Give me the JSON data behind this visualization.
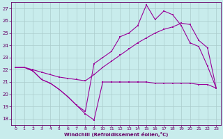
{
  "xlabel": "Windchill (Refroidissement éolien,°C)",
  "bg_color": "#c8ecec",
  "grid_color": "#aacccc",
  "line_color": "#990099",
  "xlim": [
    -0.5,
    23.5
  ],
  "ylim": [
    17.5,
    27.5
  ],
  "xticks": [
    0,
    1,
    2,
    3,
    4,
    5,
    6,
    7,
    8,
    9,
    10,
    11,
    12,
    13,
    14,
    15,
    16,
    17,
    18,
    19,
    20,
    21,
    22,
    23
  ],
  "yticks": [
    18,
    19,
    20,
    21,
    22,
    23,
    24,
    25,
    26,
    27
  ],
  "line1_x": [
    0,
    1,
    2,
    3,
    4,
    5,
    6,
    7,
    8,
    9,
    10,
    11,
    12,
    13,
    14,
    15,
    16,
    17,
    18,
    19,
    20,
    21,
    22,
    23
  ],
  "line1_y": [
    22.2,
    22.2,
    21.9,
    21.2,
    20.9,
    20.4,
    19.8,
    19.1,
    18.4,
    17.9,
    21.0,
    21.0,
    21.0,
    21.0,
    21.0,
    21.0,
    20.9,
    20.9,
    20.9,
    20.9,
    20.9,
    20.8,
    20.8,
    20.5
  ],
  "line2_x": [
    0,
    1,
    2,
    3,
    4,
    5,
    6,
    7,
    8,
    9,
    10,
    11,
    12,
    13,
    14,
    15,
    16,
    17,
    18,
    19,
    20,
    21,
    22,
    23
  ],
  "line2_y": [
    22.2,
    22.2,
    22.0,
    21.8,
    21.6,
    21.4,
    21.3,
    21.2,
    21.1,
    21.6,
    22.2,
    22.7,
    23.2,
    23.7,
    24.2,
    24.6,
    25.0,
    25.3,
    25.5,
    25.8,
    25.7,
    24.4,
    23.8,
    20.5
  ],
  "line3_x": [
    0,
    1,
    2,
    3,
    4,
    5,
    6,
    7,
    8,
    9,
    10,
    11,
    12,
    13,
    14,
    15,
    16,
    17,
    18,
    19,
    20,
    21,
    22,
    23
  ],
  "line3_y": [
    22.2,
    22.2,
    21.9,
    21.2,
    20.9,
    20.4,
    19.8,
    19.1,
    18.6,
    22.5,
    23.0,
    23.5,
    24.7,
    25.0,
    25.6,
    27.3,
    26.1,
    26.8,
    26.5,
    25.6,
    24.2,
    23.9,
    22.3,
    20.5
  ]
}
